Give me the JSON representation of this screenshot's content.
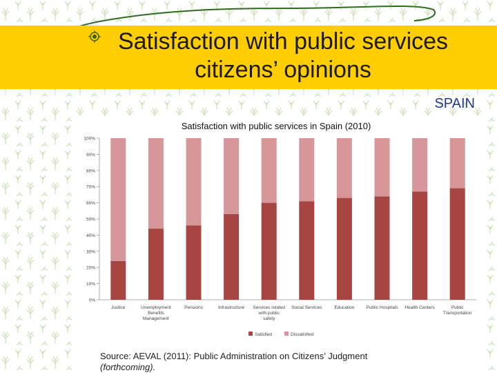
{
  "slide": {
    "title_line1": "Satisfaction with public services",
    "title_line2": "citizens’ opinions",
    "country": "SPAIN",
    "source_text": "Source: AEVAL (2011): Public Administration on Citizens’ Judgment",
    "source_note": "(forthcoming)."
  },
  "colors": {
    "title_band": "#fece00",
    "satisfied": "#a64542",
    "dissatisfied": "#d6969a",
    "country_text": "#1f3a93",
    "pattern": "#c9dfb4"
  },
  "chart_data": {
    "type": "bar",
    "stacked": true,
    "title": "Satisfaction with public services in Spain (2010)",
    "categories": [
      [
        "Justice"
      ],
      [
        "Unemployment",
        "Benefits",
        "Management"
      ],
      [
        "Pensions"
      ],
      [
        "Infrastructure"
      ],
      [
        "Services related",
        "with public",
        "safety"
      ],
      [
        "Social Services"
      ],
      [
        "Education"
      ],
      [
        "Public Hospitals"
      ],
      [
        "Health Centers"
      ],
      [
        "Public",
        "Transportation"
      ]
    ],
    "series": [
      {
        "name": "Satisfied",
        "values": [
          24,
          44,
          46,
          53,
          60,
          61,
          63,
          64,
          67,
          69
        ]
      },
      {
        "name": "Dissatisfied",
        "values": [
          76,
          56,
          54,
          47,
          40,
          39,
          37,
          36,
          33,
          31
        ]
      }
    ],
    "yticks": [
      "0%",
      "10%",
      "20%",
      "30%",
      "40%",
      "50%",
      "60%",
      "70%",
      "80%",
      "90%",
      "100%"
    ],
    "ylim": [
      0,
      100
    ],
    "legend_position": "bottom"
  }
}
